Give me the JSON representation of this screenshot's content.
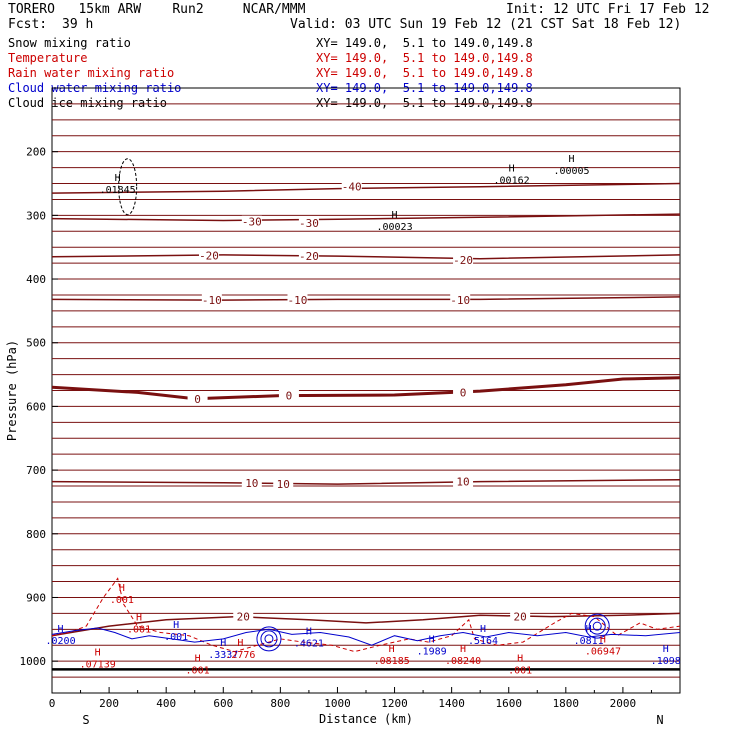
{
  "header": {
    "model": "TORERO   15km ARW    Run2     NCAR/MMM",
    "init": "Init: 12 UTC Fri 17 Feb 12",
    "fcst_label": "Fcst:",
    "fcst_value": "39 h",
    "valid": "Valid: 03 UTC Sun 19 Feb 12 (21 CST Sat 18 Feb 12)"
  },
  "legend": [
    {
      "name": "Snow mixing ratio",
      "xy": "XY= 149.0,  5.1 to 149.0,149.8",
      "color": "#000000"
    },
    {
      "name": "Temperature",
      "xy": "XY= 149.0,  5.1 to 149.0,149.8",
      "color": "#cc0000"
    },
    {
      "name": "Rain water mixing ratio",
      "xy": "XY= 149.0,  5.1 to 149.0,149.8",
      "color": "#cc0000"
    },
    {
      "name": "Cloud water mixing ratio",
      "xy": "XY= 149.0,  5.1 to 149.0,149.8",
      "color": "#0000cc"
    },
    {
      "name": "Cloud ice mixing ratio",
      "xy": "XY= 149.0,  5.1 to 149.0,149.8",
      "color": "#000000"
    }
  ],
  "chart_data": {
    "type": "line",
    "xlabel": "Distance (km)",
    "ylabel": "Pressure (hPa)",
    "xlim": [
      0,
      2200
    ],
    "ylim": [
      1050,
      100
    ],
    "x_ticks": [
      0,
      200,
      400,
      600,
      800,
      1000,
      1200,
      1400,
      1600,
      1800,
      2000
    ],
    "y_ticks": [
      200,
      300,
      400,
      500,
      600,
      700,
      800,
      900,
      1000
    ],
    "x_endpoints": [
      "S",
      "N"
    ],
    "temperature_isotherms": [
      {
        "label": "-40",
        "points": [
          [
            0,
            265
          ],
          [
            600,
            262
          ],
          [
            1000,
            258
          ],
          [
            1500,
            255
          ],
          [
            2200,
            250
          ]
        ],
        "label_at": [
          [
            1050,
            255
          ]
        ]
      },
      {
        "label": "-30",
        "points": [
          [
            0,
            305
          ],
          [
            600,
            308
          ],
          [
            1000,
            306
          ],
          [
            1500,
            303
          ],
          [
            2200,
            298
          ]
        ],
        "label_at": [
          [
            700,
            310
          ],
          [
            900,
            312
          ]
        ]
      },
      {
        "label": "-20",
        "points": [
          [
            0,
            365
          ],
          [
            600,
            362
          ],
          [
            1000,
            364
          ],
          [
            1500,
            368
          ],
          [
            2200,
            362
          ]
        ],
        "label_at": [
          [
            550,
            363
          ],
          [
            900,
            364
          ],
          [
            1440,
            370
          ]
        ]
      },
      {
        "label": "-10",
        "points": [
          [
            0,
            432
          ],
          [
            600,
            433
          ],
          [
            1000,
            432
          ],
          [
            1500,
            432
          ],
          [
            2200,
            428
          ]
        ],
        "label_at": [
          [
            560,
            433
          ],
          [
            860,
            433
          ],
          [
            1430,
            433
          ]
        ]
      },
      {
        "label": "0",
        "points": [
          [
            0,
            570
          ],
          [
            300,
            578
          ],
          [
            500,
            588
          ],
          [
            800,
            583
          ],
          [
            1200,
            582
          ],
          [
            1500,
            576
          ],
          [
            1800,
            566
          ],
          [
            2000,
            557
          ],
          [
            2200,
            555
          ]
        ],
        "label_at": [
          [
            510,
            588
          ],
          [
            830,
            583
          ],
          [
            1440,
            578
          ]
        ]
      },
      {
        "label": "10",
        "points": [
          [
            0,
            718
          ],
          [
            600,
            720
          ],
          [
            1000,
            722
          ],
          [
            1500,
            718
          ],
          [
            2200,
            715
          ]
        ],
        "label_at": [
          [
            700,
            720
          ],
          [
            810,
            722
          ],
          [
            1440,
            718
          ]
        ]
      },
      {
        "label": "20",
        "points": [
          [
            0,
            960
          ],
          [
            200,
            945
          ],
          [
            400,
            935
          ],
          [
            650,
            930
          ],
          [
            900,
            935
          ],
          [
            1100,
            940
          ],
          [
            1300,
            935
          ],
          [
            1500,
            928
          ],
          [
            1750,
            930
          ],
          [
            2000,
            928
          ],
          [
            2200,
            925
          ]
        ],
        "label_at": [
          [
            670,
            930
          ],
          [
            1640,
            930
          ]
        ]
      }
    ],
    "maxima_labels": [
      {
        "x": 230,
        "p": 260,
        "text": ".01845",
        "color": "#000000"
      },
      {
        "x": 1200,
        "p": 318,
        "text": ".00023",
        "color": "#000000"
      },
      {
        "x": 1610,
        "p": 245,
        "text": ".00162",
        "color": "#000000"
      },
      {
        "x": 1820,
        "p": 230,
        "text": ".00005",
        "color": "#000000"
      },
      {
        "x": 245,
        "p": 904,
        "text": ".001",
        "color": "#cc0000"
      },
      {
        "x": 305,
        "p": 950,
        "text": ".001",
        "color": "#cc0000"
      },
      {
        "x": 435,
        "p": 962,
        "text": ".001",
        "color": "#0000cc"
      },
      {
        "x": 30,
        "p": 968,
        "text": ".0200",
        "color": "#0000cc"
      },
      {
        "x": 160,
        "p": 1005,
        "text": ".07139",
        "color": "#cc0000"
      },
      {
        "x": 600,
        "p": 990,
        "text": ".3337",
        "color": "#0000cc"
      },
      {
        "x": 660,
        "p": 990,
        "text": ".2776",
        "color": "#cc0000"
      },
      {
        "x": 900,
        "p": 972,
        "text": ".4621",
        "color": "#0000cc"
      },
      {
        "x": 1190,
        "p": 1000,
        "text": ".08185",
        "color": "#cc0000"
      },
      {
        "x": 1330,
        "p": 985,
        "text": ".1989",
        "color": "#0000cc"
      },
      {
        "x": 1440,
        "p": 1000,
        "text": ".08240",
        "color": "#cc0000"
      },
      {
        "x": 1510,
        "p": 968,
        "text": ".5164",
        "color": "#0000cc"
      },
      {
        "x": 1880,
        "p": 968,
        "text": ".0811",
        "color": "#0000cc"
      },
      {
        "x": 1930,
        "p": 985,
        "text": ".06947",
        "color": "#cc0000"
      },
      {
        "x": 2150,
        "p": 1000,
        "text": ".1098",
        "color": "#0000cc"
      },
      {
        "x": 510,
        "p": 1015,
        "text": ".001",
        "color": "#cc0000"
      },
      {
        "x": 1640,
        "p": 1015,
        "text": ".001",
        "color": "#cc0000"
      }
    ]
  }
}
